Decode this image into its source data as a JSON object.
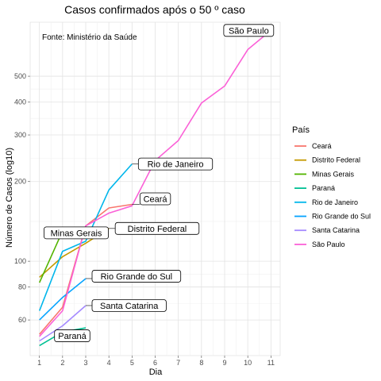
{
  "chart_data": {
    "type": "line",
    "title": "Casos confirmados após o 50 º caso",
    "xlabel": "Dia",
    "ylabel": "Número de Casos (log10)",
    "caption": "Fonte: Ministério da Saúde",
    "y_scale": "log10",
    "xlim": [
      0.6,
      11.4
    ],
    "ylim": [
      44,
      800
    ],
    "x_ticks": [
      1,
      2,
      3,
      4,
      5,
      6,
      7,
      8,
      9,
      10,
      11
    ],
    "y_ticks": [
      60,
      80,
      100,
      200,
      300,
      400,
      500
    ],
    "grid": true,
    "legend": {
      "title": "País",
      "position": "right"
    },
    "series": [
      {
        "name": "Ceará",
        "color": "#F8766D",
        "x": [
          1,
          2,
          3,
          4,
          5
        ],
        "y": [
          53,
          67,
          136,
          159,
          164
        ],
        "label": "Ceará"
      },
      {
        "name": "Distrito Federal",
        "color": "#C49A00",
        "x": [
          1,
          2,
          3,
          4
        ],
        "y": [
          87,
          104,
          117,
          133
        ],
        "label": "Distrito Federal"
      },
      {
        "name": "Minas Gerais",
        "color": "#53B400",
        "x": [
          1,
          2,
          3
        ],
        "y": [
          83,
          130,
          128
        ],
        "label": "Minas Gerais"
      },
      {
        "name": "Paraná",
        "color": "#00C094",
        "x": [
          1,
          2,
          3
        ],
        "y": [
          48,
          54,
          56
        ],
        "label": "Paraná"
      },
      {
        "name": "Rio de Janeiro",
        "color": "#00B6EB",
        "x": [
          1,
          2,
          3,
          4,
          5
        ],
        "y": [
          65,
          109,
          119,
          186,
          233
        ],
        "label": "Rio de Janeiro"
      },
      {
        "name": "Rio Grande do Sul",
        "color": "#06A4FF",
        "x": [
          1,
          2,
          3
        ],
        "y": [
          60,
          73,
          86
        ],
        "label": "Rio Grande do Sul"
      },
      {
        "name": "Santa Catarina",
        "color": "#A58AFF",
        "x": [
          1,
          2,
          3
        ],
        "y": [
          50,
          57,
          68
        ],
        "label": "Santa Catarina"
      },
      {
        "name": "São Paulo",
        "color": "#FB61D7",
        "x": [
          1,
          2,
          3,
          4,
          5,
          6,
          7,
          8,
          9,
          10,
          11
        ],
        "y": [
          52,
          65,
          136,
          152,
          162,
          240,
          286,
          396,
          459,
          631,
          745
        ],
        "label": "São Paulo"
      }
    ]
  }
}
